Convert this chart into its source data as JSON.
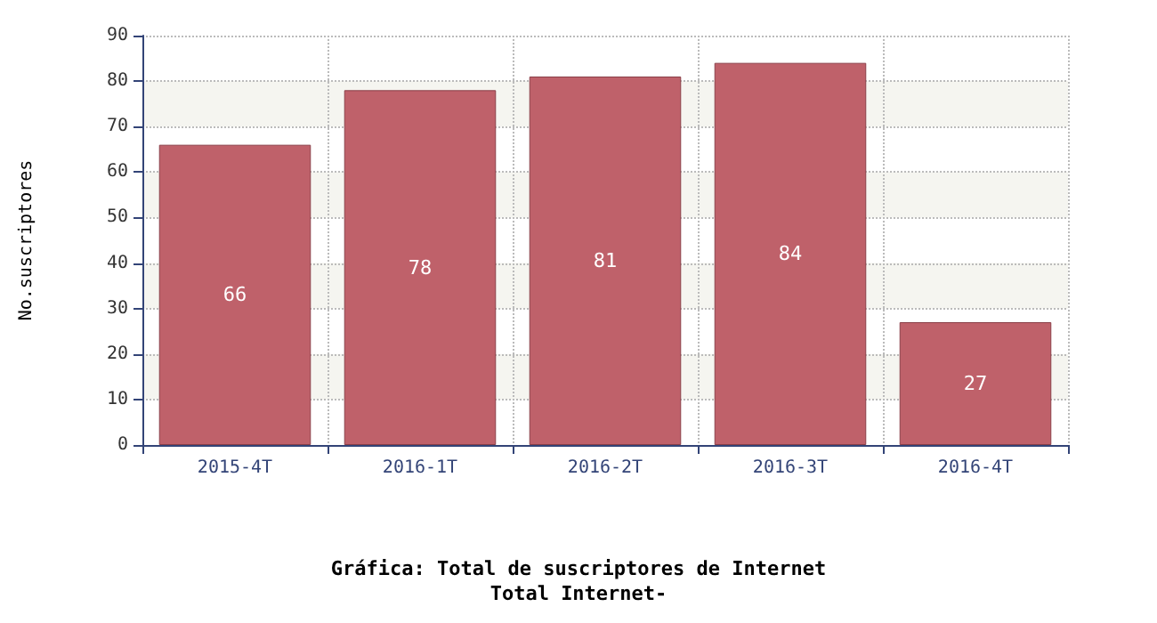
{
  "chart_data": {
    "type": "bar",
    "title": "Gráfica: Total de suscriptores de Internet",
    "subtitle": "Total Internet-",
    "ylabel": "No.suscriptores",
    "categories": [
      "2015-4T",
      "2016-1T",
      "2016-2T",
      "2016-3T",
      "2016-4T"
    ],
    "values": [
      66,
      78,
      81,
      84,
      27
    ],
    "color": "#bf616a",
    "ylim": [
      0,
      90
    ],
    "yticks": [
      0,
      10,
      20,
      30,
      40,
      50,
      60,
      70,
      80,
      90
    ],
    "grid": true,
    "data_labels": true
  }
}
